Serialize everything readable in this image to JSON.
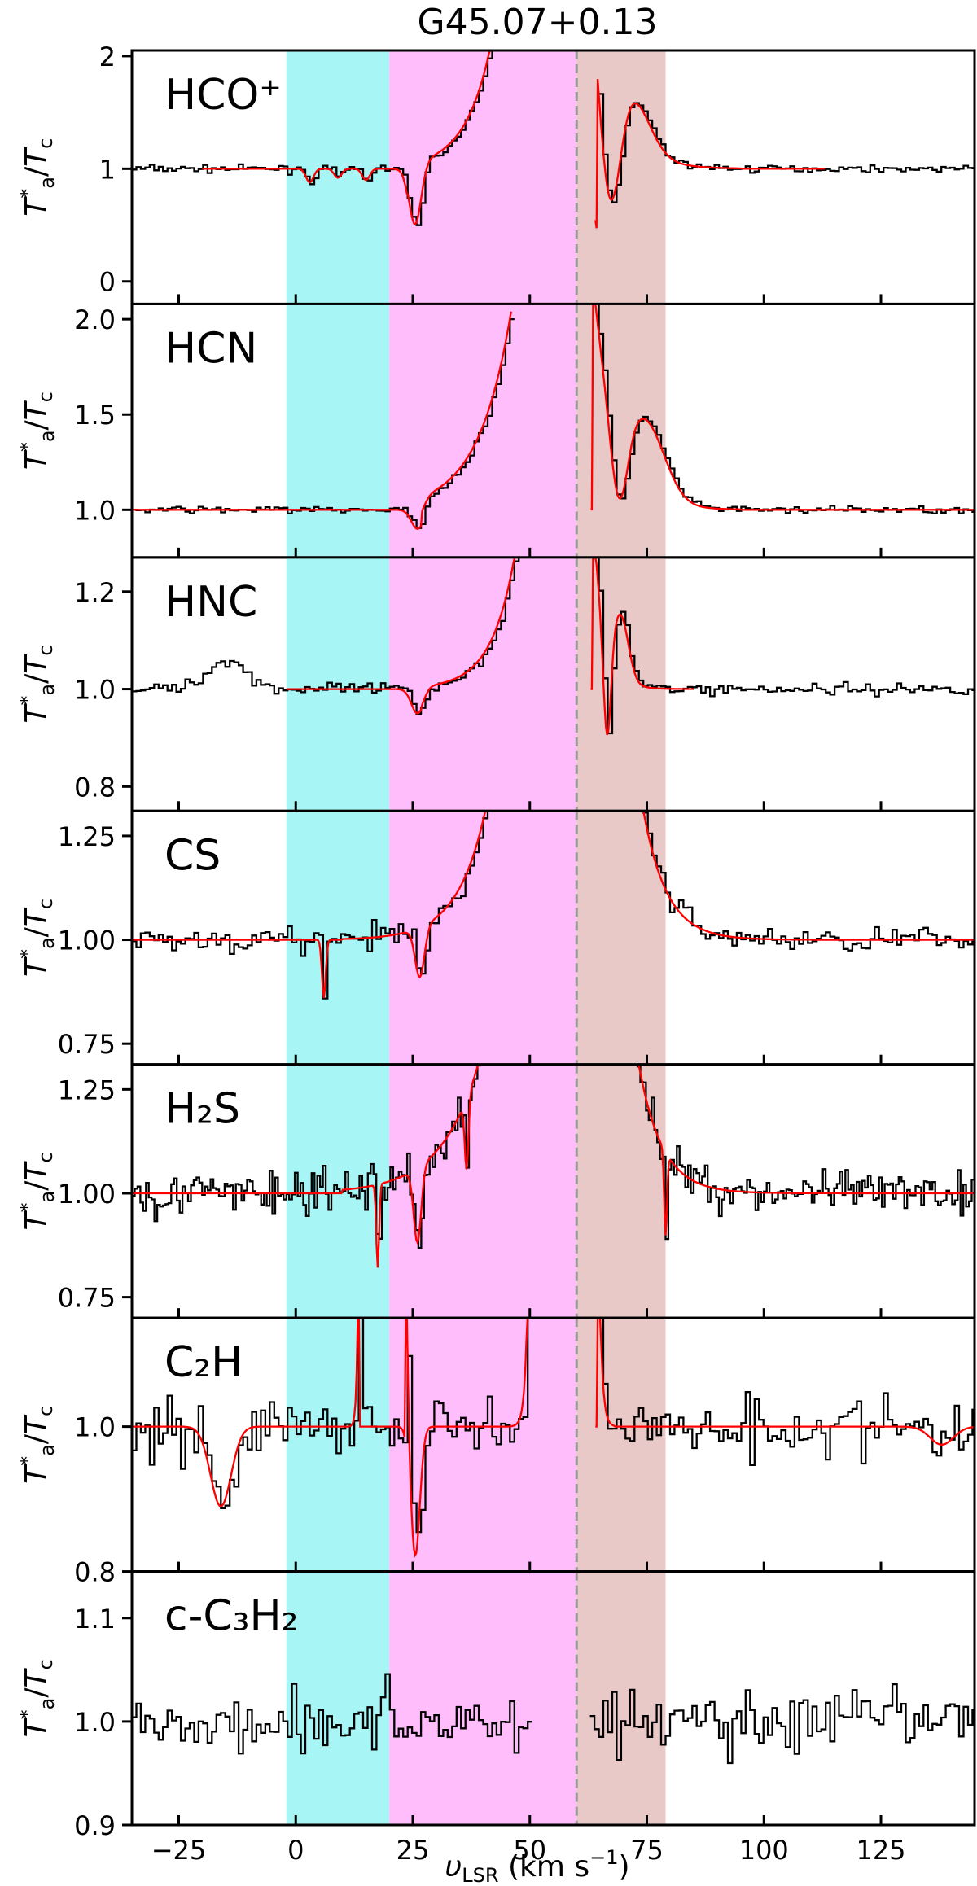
{
  "chart_data": {
    "type": "line",
    "title": "G45.07+0.13",
    "xlabel": "υLSR (km s⁻¹)",
    "ylabel": "Ta*/Tc",
    "xlim": [
      -35,
      145
    ],
    "xticks": [
      -25,
      0,
      25,
      50,
      75,
      100,
      125
    ],
    "xtick_labels": [
      "−25",
      "0",
      "25",
      "50",
      "75",
      "100",
      "125"
    ],
    "vline": 60,
    "bands": [
      {
        "from": -2,
        "to": 20,
        "color": "#a8f5f5"
      },
      {
        "from": 20,
        "to": 60,
        "color": "#ffbdfc"
      },
      {
        "from": 60,
        "to": 79,
        "color": "#e9c8c8"
      }
    ],
    "colors": {
      "observed": "#000000",
      "model": "#ff0000",
      "vline": "#999999"
    },
    "panels": [
      {
        "label": "HCO⁺",
        "ylim": [
          -0.2,
          2.05
        ],
        "yticks": [
          0,
          1,
          2
        ],
        "ytick_labels": [
          "0",
          "1",
          "2"
        ],
        "baseline": 1.0,
        "noise": 0.03,
        "model_range": [
          -20,
          113
        ],
        "features": [
          {
            "center": 3,
            "width": 0.8,
            "amp": -0.12
          },
          {
            "center": 9,
            "width": 0.8,
            "amp": -0.08
          },
          {
            "center": 15,
            "width": 0.8,
            "amp": -0.1
          },
          {
            "center": 25.5,
            "width": 1.3,
            "amp": -0.55
          },
          {
            "center": 67,
            "width": 2.2,
            "amp": -1.2
          },
          {
            "center": 72.5,
            "width": 3.5,
            "amp": 0.35
          }
        ],
        "wings": [
          {
            "side": "left",
            "anchor": 43,
            "start": 24,
            "peak": 2.4,
            "scale": 5.5
          },
          {
            "side": "right",
            "anchor": 64.5,
            "end": 95,
            "peak": 2.4,
            "scale": 5
          }
        ],
        "gap": [
          43,
          64
        ]
      },
      {
        "label": "HCN",
        "ylim": [
          0.75,
          2.08
        ],
        "yticks": [
          1.0,
          1.5,
          2.0
        ],
        "ytick_labels": [
          "1.0",
          "1.5",
          "2.0"
        ],
        "baseline": 1.0,
        "noise": 0.018,
        "model_range": [
          -35,
          145
        ],
        "features": [
          {
            "center": 26,
            "width": 1.3,
            "amp": -0.1
          },
          {
            "center": 69,
            "width": 1.8,
            "amp": -0.45
          },
          {
            "center": 75,
            "width": 4,
            "amp": 0.35
          }
        ],
        "wings": [
          {
            "side": "left",
            "anchor": 47,
            "start": 27,
            "peak": 2.2,
            "scale": 7
          },
          {
            "side": "right",
            "anchor": 63.5,
            "end": 95,
            "peak": 2.2,
            "scale": 5
          }
        ],
        "gap": [
          46,
          63
        ]
      },
      {
        "label": "HNC",
        "ylim": [
          0.75,
          1.27
        ],
        "yticks": [
          0.8,
          1.0,
          1.2
        ],
        "ytick_labels": [
          "0.8",
          "1.0",
          "1.2"
        ],
        "baseline": 1.0,
        "noise": 0.012,
        "model_range": [
          -2,
          85
        ],
        "features": [
          {
            "center": -15,
            "width": 4,
            "amp": 0.06,
            "observed_only": true
          },
          {
            "center": 26,
            "width": 1.3,
            "amp": -0.05
          },
          {
            "center": 66.5,
            "width": 0.8,
            "amp": -0.22
          },
          {
            "center": 69.5,
            "width": 1.6,
            "amp": 0.12
          }
        ],
        "wings": [
          {
            "side": "left",
            "anchor": 48,
            "start": 27,
            "peak": 1.35,
            "scale": 5
          },
          {
            "side": "right",
            "anchor": 63.5,
            "end": 90,
            "peak": 1.35,
            "scale": 2.5
          }
        ],
        "gap": [
          48,
          63
        ]
      },
      {
        "label": "CS",
        "ylim": [
          0.7,
          1.31
        ],
        "yticks": [
          0.75,
          1.0,
          1.25
        ],
        "ytick_labels": [
          "0.75",
          "1.00",
          "1.25"
        ],
        "baseline": 1.0,
        "noise": 0.03,
        "model_range": [
          -35,
          145
        ],
        "features": [
          {
            "center": 6,
            "width": 0.4,
            "amp": -0.14
          },
          {
            "center": 26.5,
            "width": 1.0,
            "amp": -0.12
          }
        ],
        "wings": [
          {
            "side": "left",
            "anchor": 42,
            "start": 10,
            "peak": 1.4,
            "scale": 6
          },
          {
            "side": "right",
            "anchor": 73,
            "end": 110,
            "peak": 1.4,
            "scale": 5
          }
        ],
        "gap": [
          42,
          73
        ]
      },
      {
        "label": "H₂S",
        "ylim": [
          0.7,
          1.31
        ],
        "yticks": [
          0.75,
          1.0,
          1.25
        ],
        "ytick_labels": [
          "0.75",
          "1.00",
          "1.25"
        ],
        "baseline": 1.0,
        "noise": 0.055,
        "model_range": [
          -35,
          145
        ],
        "features": [
          {
            "center": 17.5,
            "width": 0.3,
            "amp": -0.2
          },
          {
            "center": 26,
            "width": 0.8,
            "amp": -0.18
          },
          {
            "center": 36.5,
            "width": 0.4,
            "amp": -0.17
          },
          {
            "center": 79,
            "width": 0.3,
            "amp": -0.2
          }
        ],
        "wings": [
          {
            "side": "left",
            "anchor": 41,
            "start": 10,
            "peak": 1.4,
            "scale": 8
          },
          {
            "side": "right",
            "anchor": 72,
            "end": 120,
            "peak": 1.4,
            "scale": 5
          }
        ],
        "gap": [
          41,
          72
        ]
      },
      {
        "label": "C₂H",
        "ylim": [
          0.8,
          1.15
        ],
        "yticks": [
          0.8,
          1.0
        ],
        "ytick_labels": [
          "0.8",
          "1.0"
        ],
        "baseline": 1.0,
        "noise": 0.04,
        "model_range": [
          -35,
          145
        ],
        "features": [
          {
            "center": -16,
            "width": 2.2,
            "amp": -0.11
          },
          {
            "center": 25.5,
            "width": 1.0,
            "amp": -0.18
          },
          {
            "center": 138,
            "width": 2.5,
            "amp": -0.025
          }
        ],
        "wings": [
          {
            "side": "left",
            "anchor": 13.5,
            "start": 11.5,
            "peak": 1.4,
            "scale": 0.3
          },
          {
            "side": "right",
            "anchor": 23.5,
            "end": 25.5,
            "peak": 1.4,
            "scale": 0.4
          },
          {
            "side": "left",
            "anchor": 50,
            "start": 46,
            "peak": 1.4,
            "scale": 0.6
          },
          {
            "side": "right",
            "anchor": 64.5,
            "end": 68,
            "peak": 1.4,
            "scale": 0.6
          }
        ],
        "gap": [
          50,
          64
        ]
      },
      {
        "label": "c-C₃H₂",
        "ylim": [
          0.9,
          1.145
        ],
        "yticks": [
          0.9,
          1.0,
          1.1
        ],
        "ytick_labels": [
          "0.9",
          "1.0",
          "1.1"
        ],
        "baseline": 1.0,
        "noise": 0.032,
        "model_range": null,
        "features": [],
        "wings": [],
        "gap": [
          50,
          62
        ]
      }
    ]
  }
}
